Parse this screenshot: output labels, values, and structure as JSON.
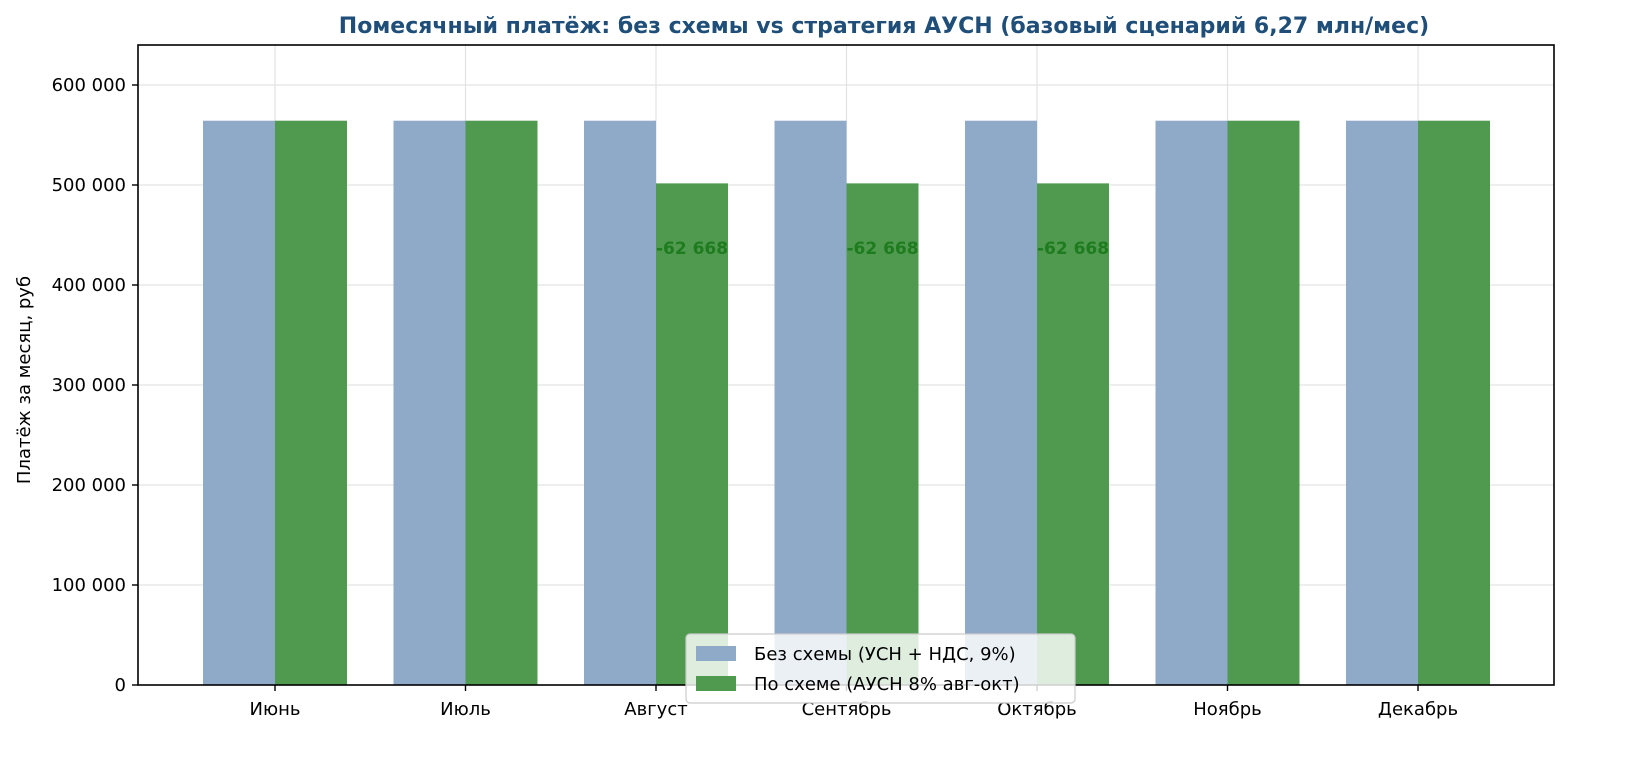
{
  "chart_data": {
    "type": "bar",
    "title": "Помесячный платёж: без схемы vs стратегия АУСН (базовый сценарий 6,27 млн/мес)",
    "xlabel": "",
    "ylabel": "Платёж за месяц, руб",
    "categories": [
      "Июнь",
      "Июль",
      "Август",
      "Сентябрь",
      "Октябрь",
      "Ноябрь",
      "Декабрь"
    ],
    "series": [
      {
        "name": "Без схемы (УСН + НДС, 9%)",
        "color": "#8FA9C8",
        "values": [
          564300,
          564300,
          564300,
          564300,
          564300,
          564300,
          564300
        ]
      },
      {
        "name": "По схеме (АУСН 8% авг-окт)",
        "color": "#4F9A4F",
        "values": [
          564300,
          564300,
          501632,
          501632,
          501632,
          564300,
          564300
        ]
      }
    ],
    "annotations": [
      {
        "category": "Август",
        "text": "-62 668"
      },
      {
        "category": "Сентябрь",
        "text": "-62 668"
      },
      {
        "category": "Октябрь",
        "text": "-62 668"
      }
    ],
    "ylim": [
      0,
      640000
    ],
    "yticks": [
      0,
      100000,
      200000,
      300000,
      400000,
      500000,
      600000
    ],
    "ytick_labels": [
      "0",
      "100 000",
      "200 000",
      "300 000",
      "400 000",
      "500 000",
      "600 000"
    ],
    "grid": true,
    "legend_position": "bottom-center",
    "title_color": "#1F4E79",
    "annotation_color": "#1E7B1E"
  }
}
